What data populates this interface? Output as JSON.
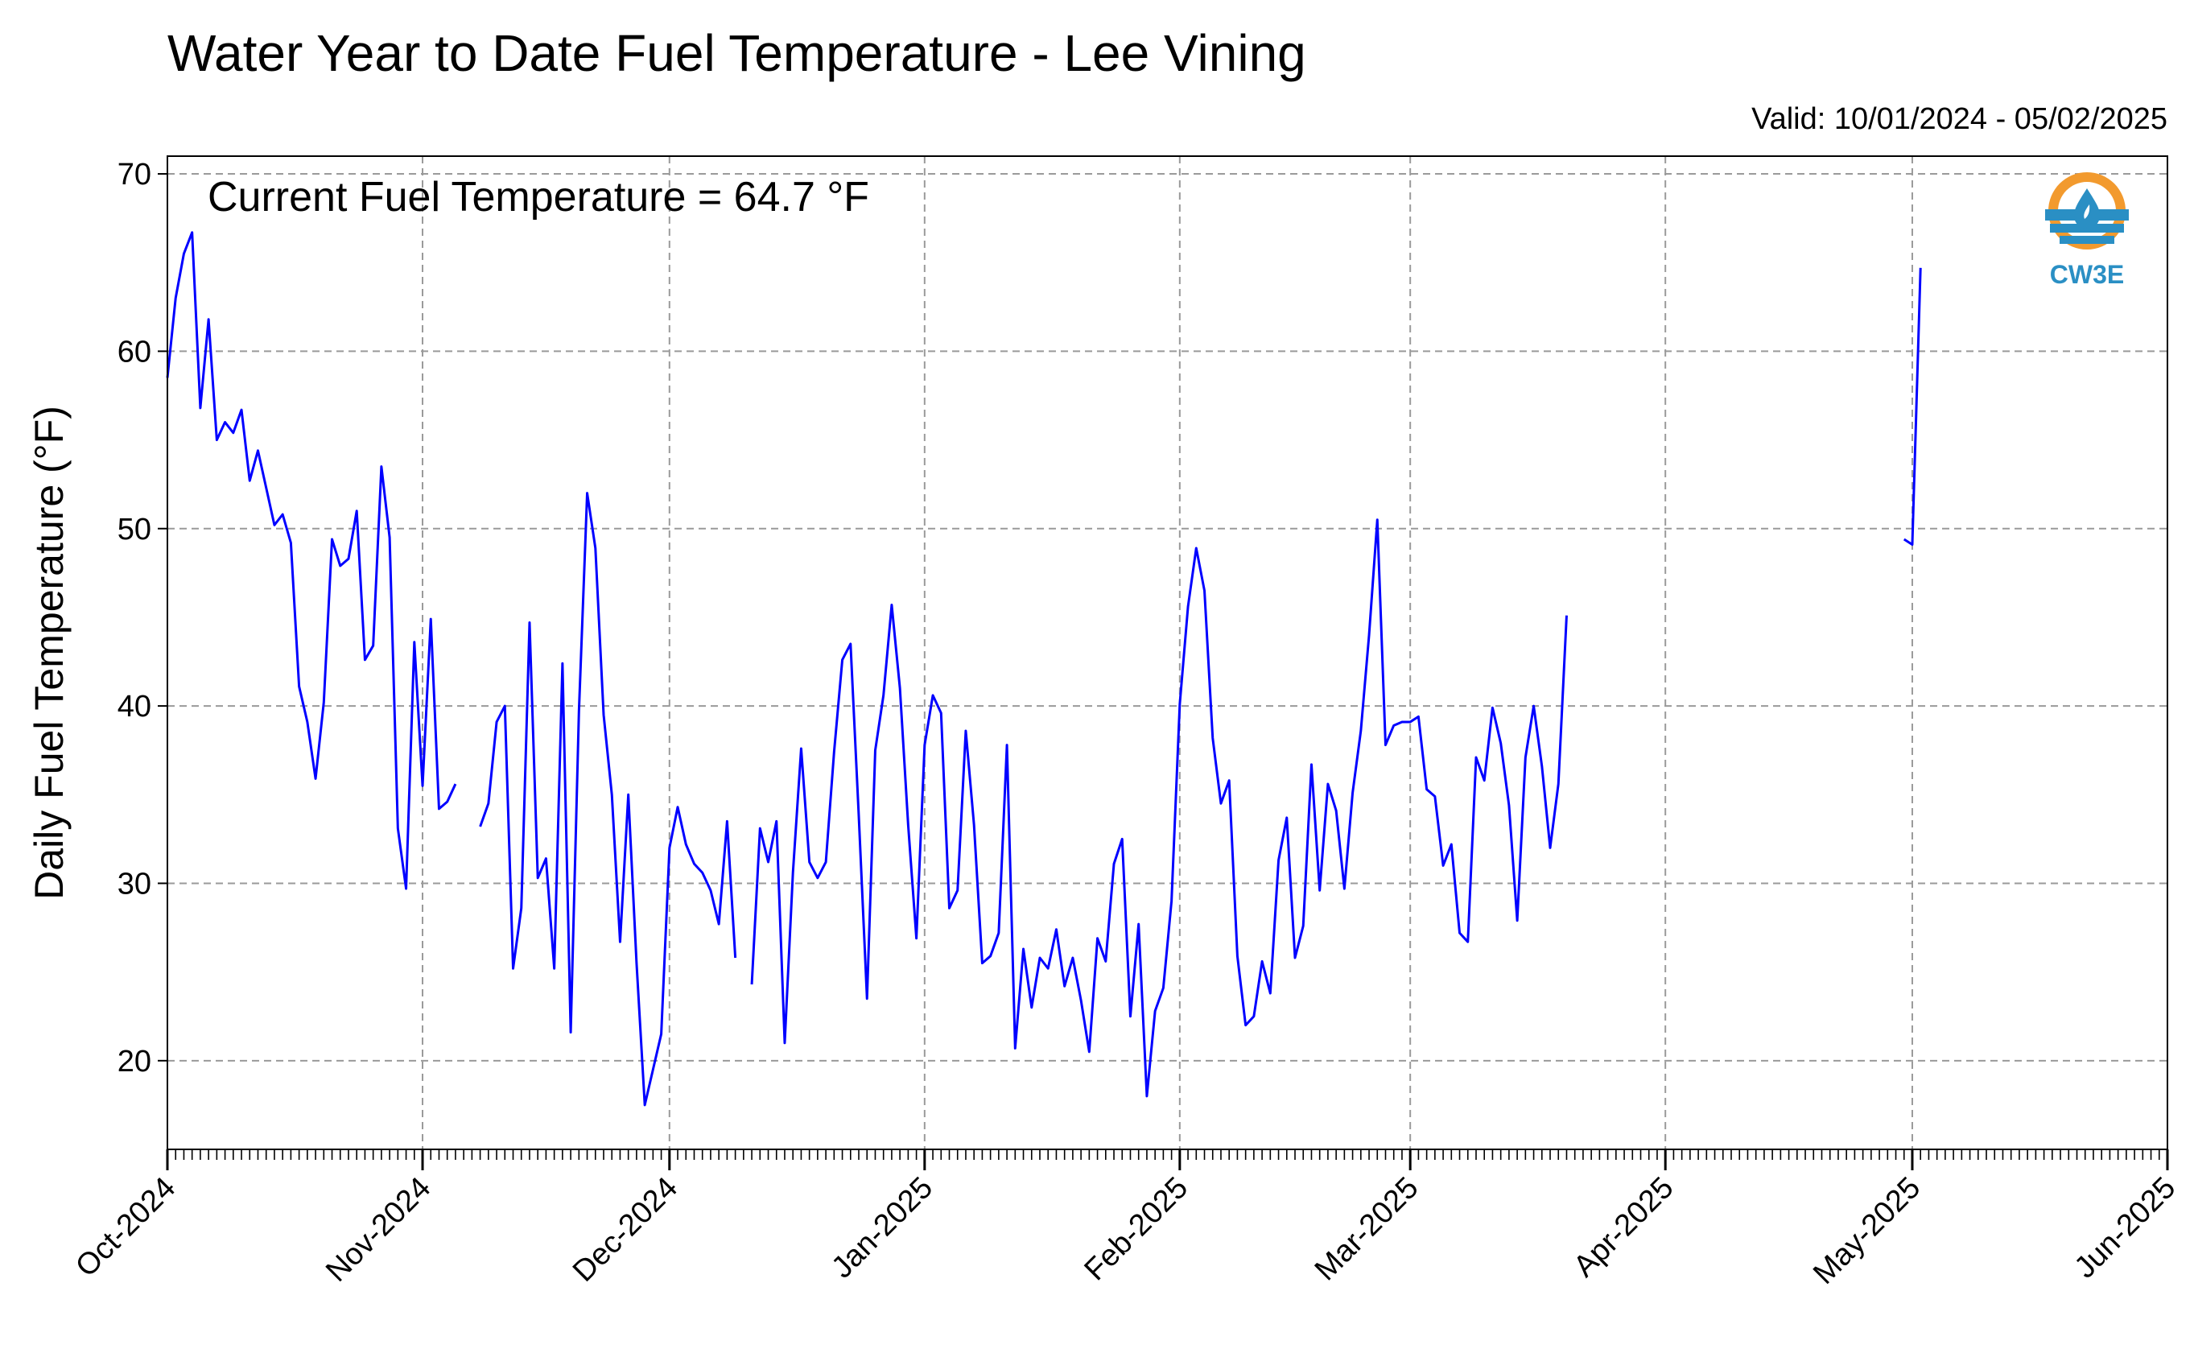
{
  "chart_data": {
    "type": "line",
    "title": "Water Year to Date Fuel Temperature - Lee Vining",
    "subtitle": "Valid: 10/01/2024 - 05/02/2025",
    "annotation": "Current Fuel Temperature = 64.7 °F",
    "ylabel": "Daily Fuel Temperature (°F)",
    "xlabel": "",
    "ylim": [
      15,
      71
    ],
    "xlim": [
      "2024-10-01",
      "2025-06-01"
    ],
    "grid": true,
    "line_color": "#0000ff",
    "yticks": [
      20,
      30,
      40,
      50,
      60,
      70
    ],
    "xticks": [
      {
        "date": "2024-10-01",
        "label": "Oct-2024"
      },
      {
        "date": "2024-11-01",
        "label": "Nov-2024"
      },
      {
        "date": "2024-12-01",
        "label": "Dec-2024"
      },
      {
        "date": "2025-01-01",
        "label": "Jan-2025"
      },
      {
        "date": "2025-02-01",
        "label": "Feb-2025"
      },
      {
        "date": "2025-03-01",
        "label": "Mar-2025"
      },
      {
        "date": "2025-04-01",
        "label": "Apr-2025"
      },
      {
        "date": "2025-05-01",
        "label": "May-2025"
      },
      {
        "date": "2025-06-01",
        "label": "Jun-2025"
      }
    ],
    "series": [
      {
        "name": "",
        "segments": [
          {
            "start": "2024-10-01",
            "values": [
              58.5,
              63,
              65.5,
              66.7,
              56.8,
              61.8,
              55,
              56,
              55.4,
              56.7,
              52.7,
              54.4,
              52.3,
              50.2,
              50.8,
              49.2,
              41.1,
              39.1,
              35.9,
              40.2,
              49.4,
              47.9,
              48.3,
              51,
              42.6,
              43.4,
              53.5,
              49.5,
              33.1,
              29.7,
              43.6,
              35.5,
              44.9,
              34.2,
              34.6,
              35.6
            ]
          },
          {
            "start": "2024-11-08",
            "values": [
              33.2,
              34.5,
              39.1,
              40,
              25.2,
              28.6,
              44.7,
              30.3,
              31.4,
              25.2,
              42.4,
              21.6,
              39.7,
              52,
              48.9,
              39.5,
              35,
              26.7,
              35,
              25.5,
              17.5,
              19.5,
              21.5,
              32,
              34.3,
              32.2,
              31.1,
              30.6,
              29.6,
              27.7,
              33.5,
              25.8
            ]
          },
          {
            "start": "2024-12-11",
            "values": [
              24.3,
              33.1,
              31.2,
              33.5,
              21,
              30.6,
              37.6,
              31.2,
              30.3,
              31.2,
              37.4,
              42.6,
              43.5,
              33.8,
              23.5,
              37.5,
              40.6,
              45.7,
              41,
              33.3,
              26.9,
              37.8,
              40.6,
              39.6,
              28.6,
              29.6,
              38.6,
              33.3,
              25.5,
              25.9,
              27.2,
              37.8,
              20.7,
              26.3,
              23,
              25.8,
              25.2,
              27.4,
              24.2,
              25.8,
              23.4,
              20.5,
              26.9,
              25.6,
              31.1,
              32.5,
              22.5,
              27.7,
              18,
              22.8,
              24.1,
              29,
              40.1,
              45.6,
              48.9,
              46.5,
              38.2,
              34.5,
              35.8,
              25.9,
              22,
              22.5,
              25.6,
              23.8,
              31.3,
              33.7,
              25.8,
              27.6,
              36.7,
              29.6,
              35.6,
              34.1,
              29.7,
              35.1,
              38.6,
              44,
              50.5,
              37.8,
              38.9,
              39.1,
              39.1,
              39.4,
              35.3,
              34.9,
              31,
              32.2,
              27.2,
              26.7,
              37.1,
              35.8,
              39.9,
              37.9,
              34.4,
              27.9,
              37.1,
              40,
              36.6,
              32,
              35.6,
              45.1
            ]
          }
        ]
      },
      {
        "name": "",
        "segments": [
          {
            "start": "2025-04-30",
            "values": [
              49.4,
              49.1,
              64.7
            ]
          }
        ]
      }
    ]
  },
  "logo": {
    "text": "CW3E",
    "icon": "cw3e-water-drop-logo-icon",
    "ring_color": "#f29a2e",
    "wave_color": "#2a8fc4"
  }
}
